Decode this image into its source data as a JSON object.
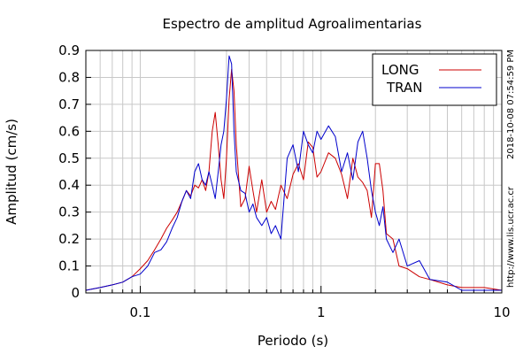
{
  "chart_data": {
    "type": "line",
    "title": "Espectro de amplitud Agroalimentarias",
    "xlabel": "Periodo (s)",
    "ylabel": "Amplitud (cm/s)",
    "x_scale": "log",
    "xlim": [
      0.05,
      10
    ],
    "ylim": [
      0,
      0.9
    ],
    "grid": true,
    "legend_position": "top-right",
    "x_ticks": [
      0.1,
      1,
      10
    ],
    "x_tick_labels": [
      "0.1",
      "1",
      "10"
    ],
    "y_ticks": [
      0,
      0.1,
      0.2,
      0.3,
      0.4,
      0.5,
      0.6,
      0.7,
      0.8,
      0.9
    ],
    "y_tick_labels": [
      "0",
      "0.1",
      "0.2",
      "0.3",
      "0.4",
      "0.5",
      "0.6",
      "0.7",
      "0.8",
      "0.9"
    ],
    "series": [
      {
        "name": "LONG",
        "color": "#cc0000",
        "x": [
          0.05,
          0.06,
          0.07,
          0.08,
          0.09,
          0.1,
          0.11,
          0.12,
          0.13,
          0.14,
          0.15,
          0.16,
          0.17,
          0.18,
          0.19,
          0.2,
          0.21,
          0.22,
          0.23,
          0.24,
          0.25,
          0.26,
          0.27,
          0.28,
          0.29,
          0.3,
          0.31,
          0.32,
          0.33,
          0.34,
          0.36,
          0.38,
          0.4,
          0.42,
          0.44,
          0.47,
          0.5,
          0.53,
          0.56,
          0.6,
          0.65,
          0.7,
          0.75,
          0.8,
          0.85,
          0.9,
          0.95,
          1.0,
          1.1,
          1.2,
          1.3,
          1.4,
          1.5,
          1.6,
          1.7,
          1.8,
          1.9,
          2.0,
          2.1,
          2.2,
          2.3,
          2.5,
          2.7,
          3.0,
          3.5,
          4.0,
          5.0,
          6.0,
          7.0,
          8.0,
          10.0
        ],
        "y": [
          0.01,
          0.02,
          0.03,
          0.04,
          0.06,
          0.09,
          0.12,
          0.16,
          0.2,
          0.24,
          0.27,
          0.3,
          0.34,
          0.38,
          0.36,
          0.4,
          0.39,
          0.42,
          0.38,
          0.45,
          0.6,
          0.67,
          0.55,
          0.42,
          0.35,
          0.5,
          0.72,
          0.83,
          0.75,
          0.55,
          0.32,
          0.35,
          0.47,
          0.38,
          0.3,
          0.42,
          0.3,
          0.34,
          0.31,
          0.4,
          0.35,
          0.44,
          0.48,
          0.42,
          0.56,
          0.54,
          0.43,
          0.45,
          0.52,
          0.5,
          0.44,
          0.35,
          0.5,
          0.43,
          0.41,
          0.38,
          0.28,
          0.48,
          0.48,
          0.38,
          0.22,
          0.2,
          0.1,
          0.09,
          0.06,
          0.05,
          0.03,
          0.02,
          0.02,
          0.02,
          0.01
        ]
      },
      {
        "name": "TRAN",
        "color": "#0000cc",
        "x": [
          0.05,
          0.06,
          0.07,
          0.08,
          0.09,
          0.1,
          0.11,
          0.12,
          0.13,
          0.14,
          0.15,
          0.16,
          0.17,
          0.18,
          0.19,
          0.2,
          0.21,
          0.22,
          0.23,
          0.24,
          0.25,
          0.26,
          0.27,
          0.28,
          0.29,
          0.3,
          0.31,
          0.32,
          0.33,
          0.34,
          0.36,
          0.38,
          0.4,
          0.42,
          0.44,
          0.47,
          0.5,
          0.53,
          0.56,
          0.6,
          0.65,
          0.7,
          0.75,
          0.8,
          0.85,
          0.9,
          0.95,
          1.0,
          1.1,
          1.2,
          1.3,
          1.4,
          1.5,
          1.6,
          1.7,
          1.8,
          1.9,
          2.0,
          2.1,
          2.2,
          2.3,
          2.5,
          2.7,
          3.0,
          3.5,
          4.0,
          5.0,
          6.0,
          7.0,
          8.0,
          10.0
        ],
        "y": [
          0.01,
          0.02,
          0.03,
          0.04,
          0.06,
          0.07,
          0.1,
          0.15,
          0.16,
          0.19,
          0.24,
          0.28,
          0.34,
          0.38,
          0.35,
          0.45,
          0.48,
          0.42,
          0.4,
          0.45,
          0.4,
          0.35,
          0.45,
          0.55,
          0.6,
          0.72,
          0.88,
          0.85,
          0.6,
          0.45,
          0.38,
          0.37,
          0.3,
          0.33,
          0.28,
          0.25,
          0.28,
          0.22,
          0.25,
          0.2,
          0.5,
          0.55,
          0.45,
          0.6,
          0.55,
          0.52,
          0.6,
          0.57,
          0.62,
          0.58,
          0.45,
          0.52,
          0.42,
          0.56,
          0.6,
          0.5,
          0.38,
          0.3,
          0.25,
          0.32,
          0.2,
          0.15,
          0.2,
          0.1,
          0.12,
          0.05,
          0.04,
          0.01,
          0.01,
          0.01,
          0.01
        ]
      }
    ]
  },
  "side_text": {
    "timestamp": "2018-10-08 07:54:59 PM",
    "url": "http://www.lis.ucr.ac.cr"
  }
}
